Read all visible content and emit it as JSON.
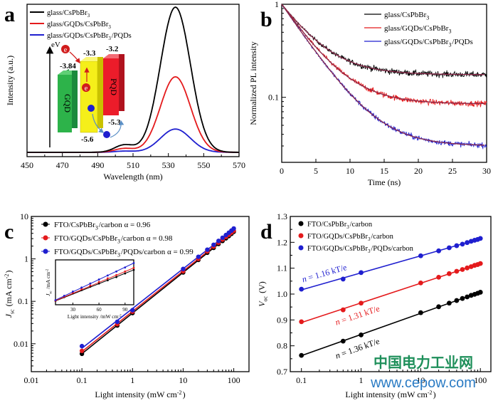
{
  "panels": [
    {
      "letter": "a",
      "chart_data": {
        "type": "line",
        "xlabel": "Wavelength (nm)",
        "ylabel": "Intensity (a.u.)",
        "xlim": [
          450,
          570
        ],
        "ylim": [
          0,
          1.05
        ],
        "xticks": [
          450,
          470,
          490,
          510,
          530,
          550,
          570
        ],
        "yticks_shown": false,
        "legend_position": "top-left",
        "series": [
          {
            "name": "glass/CsPbBr3",
            "color": "#000000",
            "peak": 534,
            "amplitude": 1.0,
            "fwhm": 20
          },
          {
            "name": "glass/GQDs/CsPbBr3",
            "color": "#e41a1c",
            "peak": 534,
            "amplitude": 0.52,
            "fwhm": 20
          },
          {
            "name": "glass/GQDs/CsPbBr3/PQDs",
            "color": "#1f1fcf",
            "peak": 534,
            "amplitude": 0.16,
            "fwhm": 20
          }
        ],
        "inset": {
          "axis_label": "eV",
          "blocks": [
            {
              "label": "GQD",
              "top_value": "-3.84",
              "color": "#2db34a"
            },
            {
              "label": "",
              "top_value": "-3.3",
              "bottom_value": "-5.6",
              "color": "#f5ef1a"
            },
            {
              "label": "PQD",
              "top_value": "-3.2",
              "bottom_value": "-5.3",
              "color": "#ec1c2a"
            }
          ],
          "electron_symbol": "e"
        }
      }
    },
    {
      "letter": "b",
      "chart_data": {
        "type": "line",
        "xlabel": "Time (ns)",
        "ylabel": "Normalized PL intensity",
        "xlim": [
          0,
          30
        ],
        "ylim": [
          0.02,
          1.0
        ],
        "yscale": "log",
        "xticks": [
          0,
          5,
          10,
          15,
          20,
          25,
          30
        ],
        "yticks": [
          0.1,
          1
        ],
        "legend_position": "top-right",
        "series": [
          {
            "name": "glass/CsPbBr3",
            "color": "#000000",
            "plateau": 0.175,
            "tau_ns": 4.0
          },
          {
            "name": "glass/GQDs/CsPbBr3",
            "color": "#e41a1c",
            "plateau": 0.085,
            "tau_ns": 4.0
          },
          {
            "name": "glass/GQDs/CsPbBr3/PQDs",
            "color": "#1f1fcf",
            "plateau": 0.03,
            "tau_ns": 4.0
          }
        ],
        "fit_color": "#8b2a4a"
      }
    },
    {
      "letter": "c",
      "chart_data": {
        "type": "scatter",
        "xlabel": "Light intensity (mW cm-2)",
        "ylabel": "Jsc (mA cm-2)",
        "xscale": "log",
        "yscale": "log",
        "xlim": [
          0.01,
          200
        ],
        "ylim": [
          0.0022,
          10
        ],
        "xticks": [
          0.01,
          0.1,
          1,
          10,
          100
        ],
        "yticks": [
          0.01,
          0.1,
          1,
          10
        ],
        "legend_position": "top-left",
        "series": [
          {
            "name": "FTO/CsPbBr3/carbon α = 0.96",
            "color": "#000000",
            "x": [
              0.1,
              0.5,
              1,
              10,
              20,
              30,
              40,
              50,
              60,
              70,
              80,
              90,
              100
            ],
            "y": [
              0.0058,
              0.027,
              0.053,
              0.48,
              0.95,
              1.4,
              1.82,
              2.25,
              2.65,
              3.05,
              3.45,
              3.9,
              4.35
            ]
          },
          {
            "name": "FTO/GQDs/CsPbBr3/carbon α = 0.98",
            "color": "#e41a1c",
            "x": [
              0.1,
              0.5,
              1,
              10,
              20,
              30,
              40,
              50,
              60,
              70,
              80,
              90,
              100
            ],
            "y": [
              0.0068,
              0.029,
              0.057,
              0.51,
              1.0,
              1.5,
              1.95,
              2.4,
              2.85,
              3.3,
              3.7,
              4.15,
              4.6
            ]
          },
          {
            "name": "FTO/GQDs/CsPbBr3/PQDs/carbon α = 0.99",
            "color": "#1f1fcf",
            "x": [
              0.1,
              0.5,
              1,
              10,
              20,
              30,
              40,
              50,
              60,
              70,
              80,
              90,
              100
            ],
            "y": [
              0.0088,
              0.033,
              0.062,
              0.58,
              1.12,
              1.65,
              2.15,
              2.65,
              3.15,
              3.65,
              4.15,
              4.65,
              5.2
            ]
          }
        ],
        "inset": {
          "xlabel": "Light intensity /mW cm-2",
          "ylabel": "Jsc /mA cm-2",
          "xticks": [
            30,
            60,
            90
          ]
        }
      }
    },
    {
      "letter": "d",
      "chart_data": {
        "type": "scatter",
        "xlabel": "Light intensity (mW cm-2)",
        "ylabel": "Voc (V)",
        "xscale": "log",
        "xlim": [
          0.065,
          150
        ],
        "ylim": [
          0.7,
          1.3
        ],
        "xticks": [
          0.1,
          1,
          10,
          100
        ],
        "yticks": [
          0.7,
          0.8,
          0.9,
          1.0,
          1.1,
          1.2,
          1.3
        ],
        "legend_position": "top-left",
        "series": [
          {
            "name": "FTO/CsPbBr3/carbon",
            "color": "#000000",
            "slope_label": "n = 1.36 kT/e",
            "x": [
              0.1,
              0.5,
              1,
              10,
              20,
              30,
              40,
              50,
              60,
              70,
              80,
              90,
              100
            ],
            "y": [
              0.763,
              0.818,
              0.842,
              0.928,
              0.951,
              0.965,
              0.975,
              0.983,
              0.989,
              0.995,
              0.999,
              1.003,
              1.007
            ]
          },
          {
            "name": "FTO/GQDs/CsPbBr3/carbon",
            "color": "#e41a1c",
            "slope_label": "n = 1.31 kT/e",
            "x": [
              0.1,
              0.5,
              1,
              10,
              20,
              30,
              40,
              50,
              60,
              70,
              80,
              90,
              100
            ],
            "y": [
              0.893,
              0.939,
              0.965,
              1.043,
              1.065,
              1.079,
              1.088,
              1.095,
              1.101,
              1.106,
              1.111,
              1.114,
              1.118
            ]
          },
          {
            "name": "FTO/GQDs/CsPbBr3/PQDs/carbon",
            "color": "#1f1fcf",
            "slope_label": "n = 1.16 kT/e",
            "x": [
              0.1,
              0.5,
              1,
              10,
              20,
              30,
              40,
              50,
              60,
              70,
              80,
              90,
              100
            ],
            "y": [
              1.019,
              1.058,
              1.083,
              1.148,
              1.167,
              1.179,
              1.187,
              1.193,
              1.199,
              1.204,
              1.208,
              1.211,
              1.215
            ]
          }
        ]
      }
    }
  ],
  "watermark": {
    "title": "中国电力工业网",
    "url": "www.cepow.com",
    "title_color": "#1e8f5a",
    "url_color": "#2a7bc4"
  }
}
